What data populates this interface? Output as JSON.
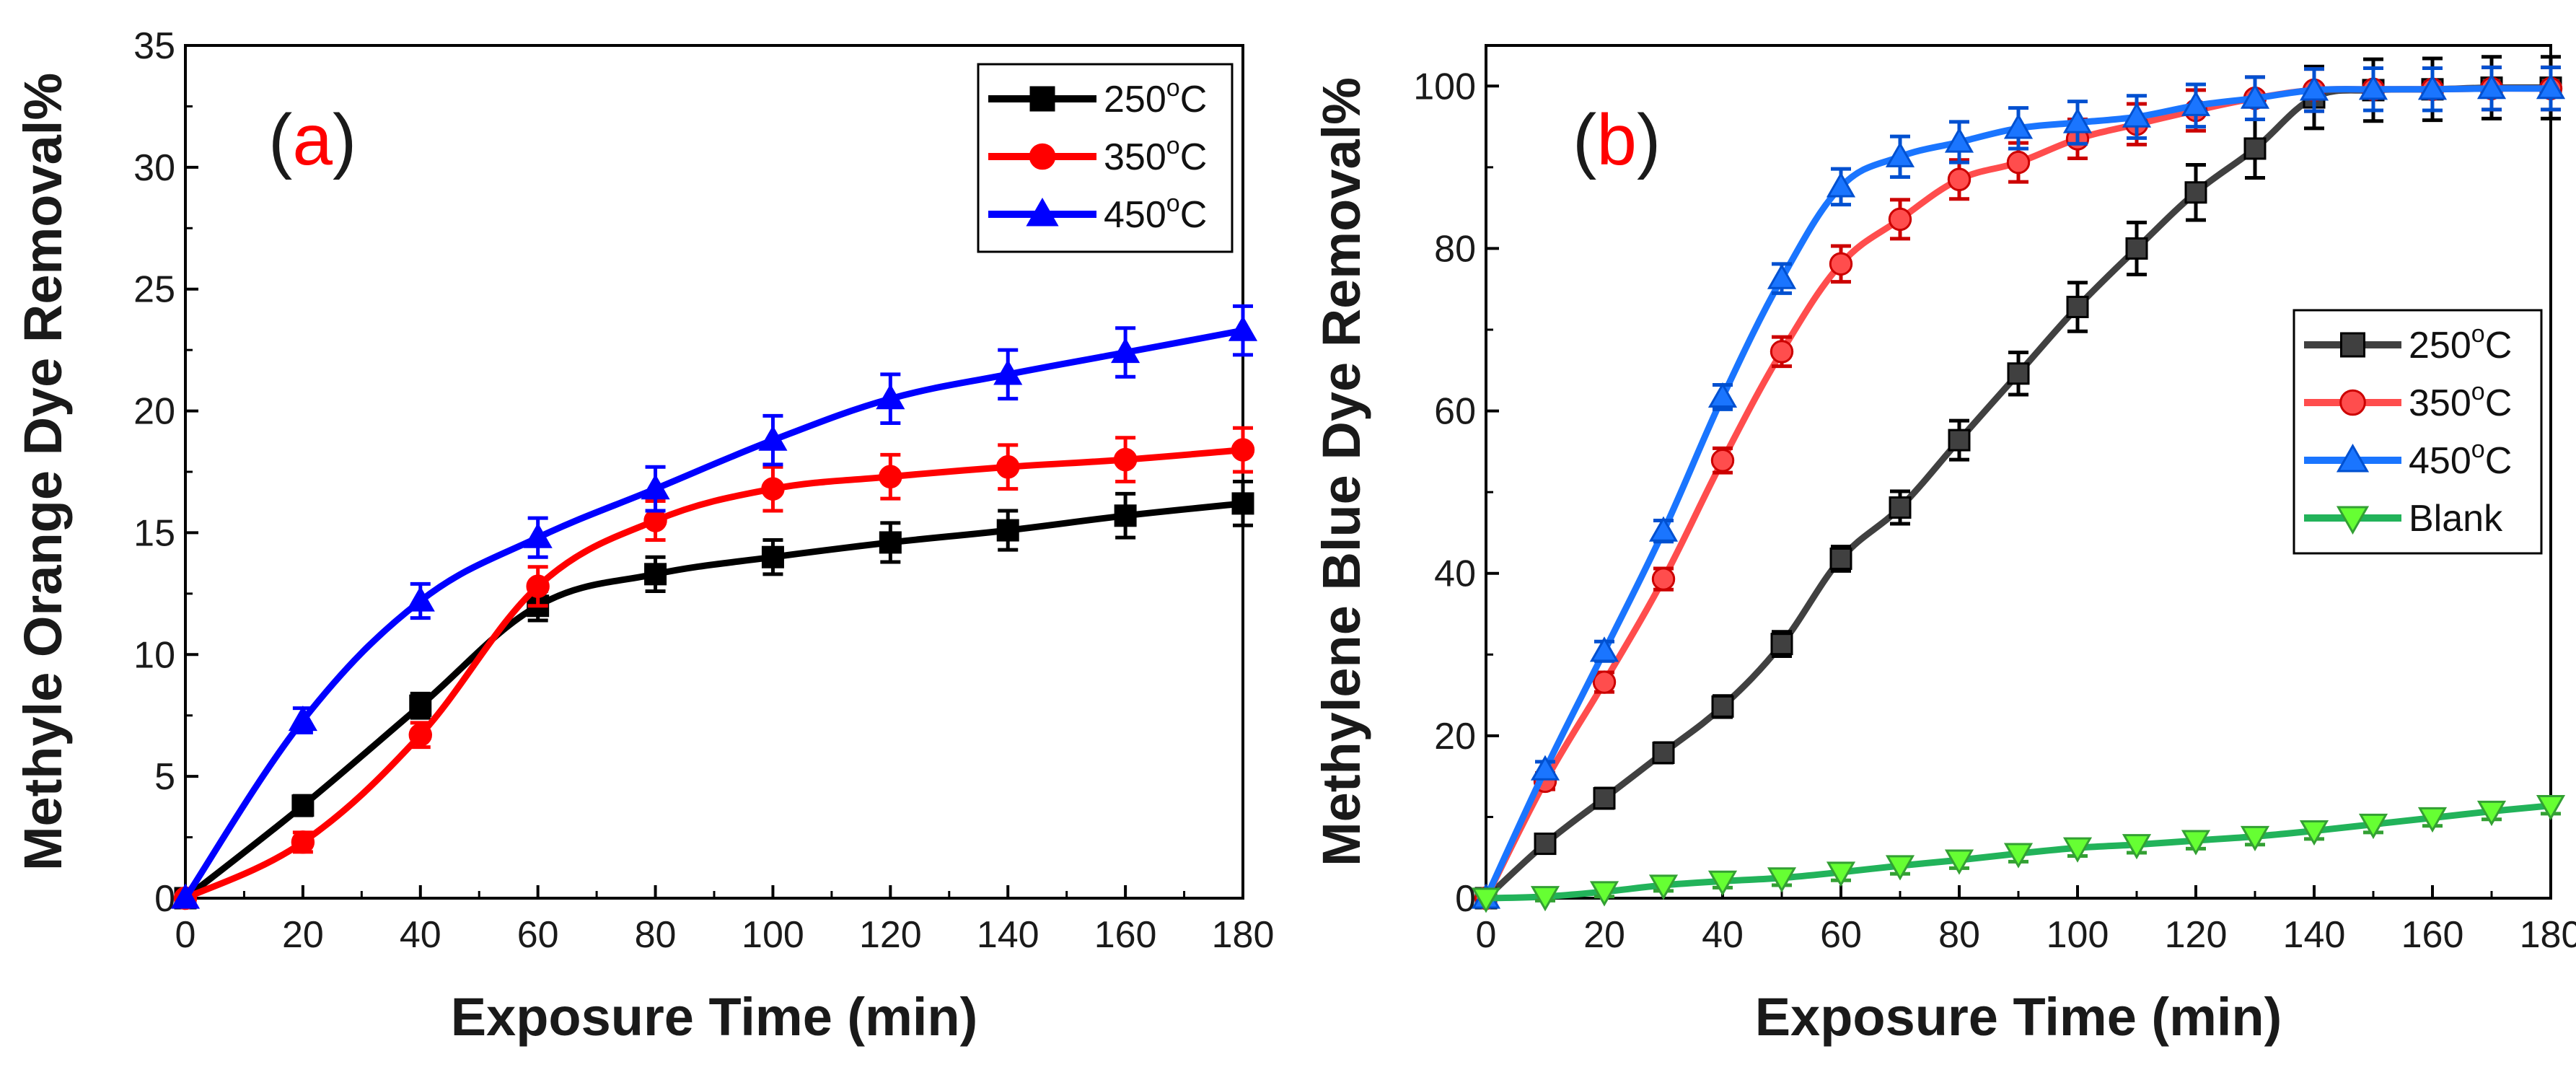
{
  "chart_data": [
    {
      "type": "line",
      "panel_label": {
        "open": "(",
        "letter": "a",
        "close": ")"
      },
      "xlabel": "Exposure Time (min)",
      "ylabel": "Methyle Orange Dye Removal%",
      "xlim": [
        0,
        180
      ],
      "ylim": [
        0,
        35
      ],
      "xticks": [
        0,
        20,
        40,
        60,
        80,
        100,
        120,
        140,
        160,
        180
      ],
      "yticks": [
        0,
        5,
        10,
        15,
        20,
        25,
        30,
        35
      ],
      "grid": false,
      "legend_position": "top-right",
      "series": [
        {
          "name": "250°C",
          "base": "250",
          "sup": "o",
          "unit": "C",
          "color": "#000000",
          "marker": "square",
          "err_color": "#000000",
          "x": [
            0,
            20,
            40,
            60,
            80,
            100,
            120,
            140,
            160,
            180
          ],
          "y": [
            0,
            3.8,
            7.9,
            12.0,
            13.3,
            14.0,
            14.6,
            15.1,
            15.7,
            16.2
          ],
          "err": [
            0,
            0.4,
            0.5,
            0.6,
            0.7,
            0.7,
            0.8,
            0.8,
            0.9,
            0.9
          ]
        },
        {
          "name": "350°C",
          "base": "350",
          "sup": "o",
          "unit": "C",
          "color": "#ff0000",
          "marker": "circle",
          "err_color": "#ff0000",
          "x": [
            0,
            20,
            40,
            60,
            80,
            100,
            120,
            140,
            160,
            180
          ],
          "y": [
            0,
            2.3,
            6.7,
            12.8,
            15.5,
            16.8,
            17.3,
            17.7,
            18.0,
            18.4
          ],
          "err": [
            0,
            0.4,
            0.5,
            0.8,
            0.8,
            0.9,
            0.9,
            0.9,
            0.9,
            0.9
          ]
        },
        {
          "name": "450°C",
          "base": "450",
          "sup": "o",
          "unit": "C",
          "color": "#0000ff",
          "marker": "triangle-up",
          "err_color": "#0000ff",
          "x": [
            0,
            20,
            40,
            60,
            80,
            100,
            120,
            140,
            160,
            180
          ],
          "y": [
            0,
            7.3,
            12.2,
            14.8,
            16.8,
            18.8,
            20.5,
            21.5,
            22.4,
            23.3
          ],
          "err": [
            0,
            0.5,
            0.7,
            0.8,
            0.9,
            1.0,
            1.0,
            1.0,
            1.0,
            1.0
          ]
        }
      ]
    },
    {
      "type": "line",
      "panel_label": {
        "open": "(",
        "letter": "b",
        "close": ")"
      },
      "xlabel": "Exposure Time (min)",
      "ylabel": "Methylene Blue Dye Removal%",
      "xlim": [
        0,
        180
      ],
      "ylim": [
        0,
        105
      ],
      "xticks": [
        0,
        20,
        40,
        60,
        80,
        100,
        120,
        140,
        160,
        180
      ],
      "yticks": [
        0,
        20,
        40,
        60,
        80,
        100
      ],
      "grid": false,
      "legend_position": "center-right",
      "series": [
        {
          "name": "250°C",
          "base": "250",
          "sup": "o",
          "unit": "C",
          "color": "#404040",
          "marker": "square",
          "err_color": "#000000",
          "x": [
            0,
            10,
            20,
            30,
            40,
            50,
            60,
            70,
            80,
            90,
            100,
            110,
            120,
            130,
            140,
            150,
            160,
            170,
            180
          ],
          "y": [
            0,
            6.7,
            12.3,
            17.9,
            23.6,
            31.3,
            41.8,
            48.1,
            56.4,
            64.6,
            72.8,
            80.0,
            86.9,
            92.3,
            98.6,
            99.5,
            99.6,
            99.8,
            99.8
          ],
          "err": [
            0,
            1.0,
            1.2,
            1.2,
            1.3,
            1.5,
            1.5,
            2.0,
            2.4,
            2.6,
            3.0,
            3.2,
            3.4,
            3.6,
            3.8,
            3.8,
            3.8,
            3.8,
            3.8
          ]
        },
        {
          "name": "350°C",
          "base": "350",
          "sup": "o",
          "unit": "C",
          "color": "#ff4d4d",
          "marker": "circle",
          "err_color": "#cc0000",
          "x": [
            0,
            10,
            20,
            30,
            40,
            50,
            60,
            70,
            80,
            90,
            100,
            110,
            120,
            130,
            140,
            150,
            160,
            170,
            180
          ],
          "y": [
            0,
            14.4,
            26.6,
            39.3,
            53.9,
            67.3,
            78.1,
            83.6,
            88.5,
            90.6,
            93.5,
            95.3,
            97.0,
            98.5,
            99.5,
            99.6,
            99.6,
            99.7,
            99.7
          ],
          "err": [
            0,
            1.0,
            1.2,
            1.3,
            1.5,
            1.8,
            2.2,
            2.4,
            2.4,
            2.4,
            2.4,
            2.5,
            2.5,
            2.6,
            2.6,
            2.6,
            2.6,
            2.6,
            2.6
          ]
        },
        {
          "name": "450°C",
          "base": "450",
          "sup": "o",
          "unit": "C",
          "color": "#1a75ff",
          "marker": "triangle-up",
          "err_color": "#0050d0",
          "x": [
            0,
            10,
            20,
            30,
            40,
            50,
            60,
            70,
            80,
            90,
            100,
            110,
            120,
            130,
            140,
            150,
            160,
            170,
            180
          ],
          "y": [
            0,
            15.8,
            30.4,
            45.2,
            61.7,
            76.3,
            87.6,
            91.3,
            93.1,
            94.8,
            95.5,
            96.2,
            97.6,
            98.5,
            99.5,
            99.6,
            99.6,
            99.7,
            99.7
          ],
          "err": [
            0,
            1.0,
            1.2,
            1.3,
            1.5,
            1.8,
            2.2,
            2.5,
            2.5,
            2.5,
            2.6,
            2.6,
            2.6,
            2.6,
            2.6,
            2.6,
            2.6,
            2.6,
            2.6
          ]
        },
        {
          "name": "Blank",
          "base": "Blank",
          "sup": "",
          "unit": "",
          "color": "#22b35a",
          "marker": "triangle-down",
          "err_color": "#33a033",
          "marker_fill": "#66ff33",
          "x": [
            0,
            10,
            20,
            30,
            40,
            50,
            60,
            70,
            80,
            90,
            100,
            110,
            120,
            130,
            140,
            150,
            160,
            170,
            180
          ],
          "y": [
            0,
            0.2,
            0.8,
            1.6,
            2.1,
            2.5,
            3.2,
            4.0,
            4.7,
            5.5,
            6.2,
            6.6,
            7.1,
            7.6,
            8.3,
            9.1,
            9.9,
            10.7,
            11.4
          ],
          "err": [
            0,
            0.5,
            0.6,
            0.7,
            0.8,
            0.9,
            1.0,
            1.0,
            1.0,
            1.0,
            1.0,
            1.0,
            1.0,
            1.0,
            1.0,
            1.0,
            1.0,
            1.0,
            1.0
          ]
        }
      ]
    }
  ]
}
